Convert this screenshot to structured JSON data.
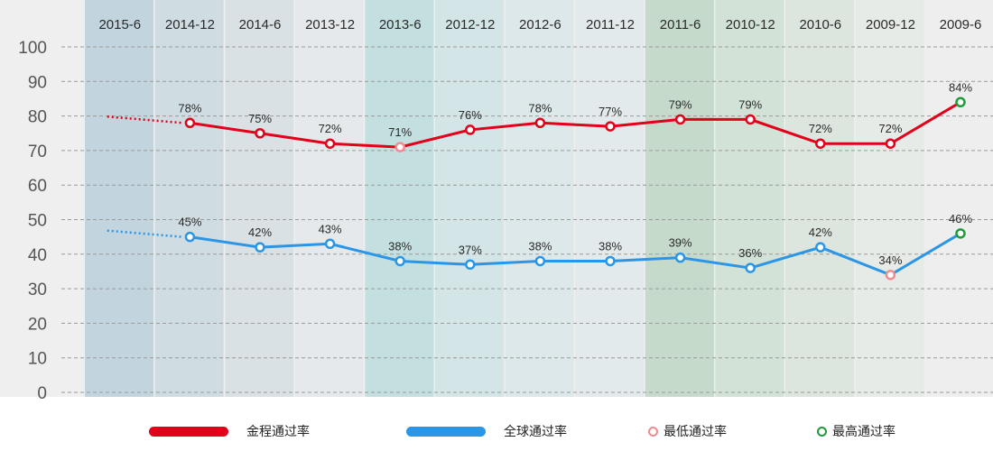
{
  "chart_data": {
    "type": "line",
    "title": "",
    "xlabel": "",
    "ylabel": "",
    "ylim": [
      0,
      100
    ],
    "yticks": [
      "0",
      "10",
      "20",
      "30",
      "40",
      "50",
      "60",
      "70",
      "80",
      "90",
      "100"
    ],
    "categories": [
      "2015-6",
      "2014-12",
      "2014-6",
      "2013-12",
      "2013-6",
      "2012-12",
      "2012-6",
      "2011-12",
      "2011-6",
      "2010-12",
      "2010-6",
      "2009-12",
      "2009-6"
    ],
    "band_colors": [
      "#c2d5de",
      "#cfdde3",
      "#dae1e5",
      "#e5e9eb",
      "#c4dfe0",
      "#d3e5e6",
      "#dce8e9",
      "#e3eaeb",
      "#c5dacb",
      "#d3e2d6",
      "#dce5de",
      "#e7ebe7",
      "#eeeeee"
    ],
    "series": [
      {
        "name": "金程通过率",
        "color": "#e2001a",
        "values": [
          null,
          78,
          75,
          72,
          71,
          76,
          78,
          77,
          79,
          79,
          72,
          72,
          84
        ],
        "labels": [
          "",
          "78%",
          "75%",
          "72%",
          "71%",
          "76%",
          "78%",
          "77%",
          "79%",
          "79%",
          "72%",
          "72%",
          "84%"
        ]
      },
      {
        "name": "全球通过率",
        "color": "#2b95e6",
        "values": [
          null,
          45,
          42,
          43,
          38,
          37,
          38,
          38,
          39,
          36,
          42,
          34,
          46
        ],
        "labels": [
          "",
          "45%",
          "42%",
          "43%",
          "38%",
          "37%",
          "38%",
          "38%",
          "39%",
          "36%",
          "42%",
          "34%",
          "46%"
        ]
      }
    ],
    "markers": {
      "lowest_color": "#f08c90",
      "highest_color": "#1d9b3a"
    },
    "grid": true,
    "legend_position": "bottom"
  },
  "legend": {
    "items": [
      {
        "label": "金程通过率",
        "color": "#e2001a"
      },
      {
        "label": "全球通过率",
        "color": "#2b95e6"
      },
      {
        "label": "最低通过率",
        "color": "#f08c90"
      },
      {
        "label": "最高通过率",
        "color": "#1d9b3a"
      }
    ]
  }
}
